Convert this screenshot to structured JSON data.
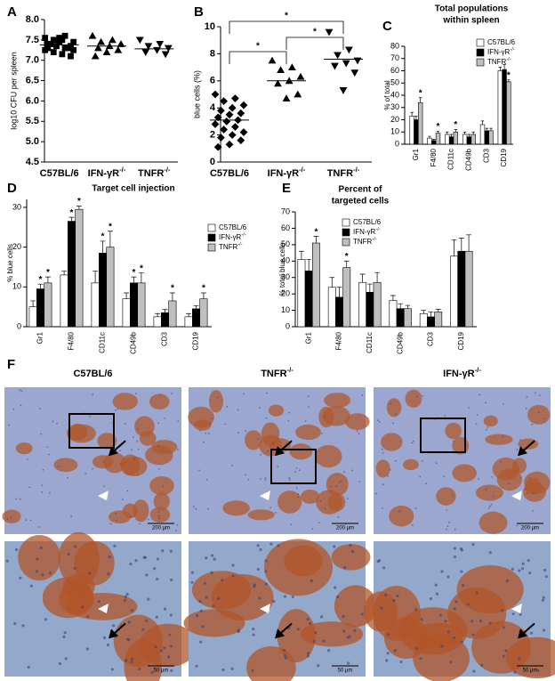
{
  "chart_data": [
    {
      "type": "scatter",
      "panel": "A",
      "ylabel": "log10 CFU per spleen",
      "categories": [
        "C57BL/6",
        "IFN-γR-/-",
        "TNFR-/-"
      ],
      "series": [
        {
          "marker": "square",
          "color": "#000000",
          "values": [
            7.55,
            7.6,
            7.5,
            7.45,
            7.5,
            7.4,
            7.35,
            7.45,
            7.4,
            7.3,
            7.35,
            7.25,
            7.3,
            7.2,
            7.25,
            7.15,
            7.4,
            7.1,
            7.55,
            7.3
          ]
        },
        {
          "marker": "triangle",
          "color": "#000000",
          "values": [
            7.6,
            7.5,
            7.45,
            7.4,
            7.35,
            7.3,
            7.25,
            7.2,
            7.1
          ]
        },
        {
          "marker": "triangle-down",
          "color": "#000000",
          "values": [
            7.5,
            7.4,
            7.35,
            7.3,
            7.25,
            7.2,
            7.15
          ]
        }
      ],
      "means": [
        7.38,
        7.35,
        7.28
      ],
      "ylim": [
        4.5,
        8.0
      ],
      "yticks": [
        4.5,
        {
          "value": 5,
          "label": "5.0"
        },
        5.5,
        {
          "value": 6,
          "label": "6.0"
        },
        6.5,
        {
          "value": 7,
          "label": "7.0"
        },
        7.5,
        {
          "value": 8,
          "label": "8.0"
        }
      ]
    },
    {
      "type": "scatter",
      "panel": "B",
      "ylabel": "blue cells (%)",
      "categories": [
        "C57BL/6",
        "IFN-γR-/-",
        "TNFR-/-"
      ],
      "series": [
        {
          "marker": "diamond",
          "color": "#000000",
          "values": [
            5.0,
            4.7,
            4.5,
            4.2,
            4.0,
            3.8,
            3.6,
            3.5,
            3.3,
            3.1,
            3.0,
            2.8,
            2.6,
            2.4,
            2.2,
            2.0,
            1.8,
            1.6,
            1.3,
            1.1
          ]
        },
        {
          "marker": "triangle",
          "color": "#000000",
          "values": [
            7.5,
            7.0,
            6.8,
            6.3,
            6.0,
            5.8,
            5.0,
            4.7
          ]
        },
        {
          "marker": "triangle-down",
          "color": "#000000",
          "values": [
            9.6,
            8.3,
            7.9,
            7.5,
            7.3,
            7.1,
            6.6,
            5.3
          ]
        }
      ],
      "means": [
        3.1,
        6.0,
        7.6
      ],
      "comparisons": [
        {
          "from": 0,
          "to": 2,
          "label": "*"
        },
        {
          "from": 0,
          "to": 1,
          "label": "*"
        },
        {
          "from": 1,
          "to": 2,
          "label": "*"
        }
      ],
      "ylim": [
        0,
        10
      ],
      "yticks": [
        0,
        2,
        4,
        6,
        8,
        10
      ]
    },
    {
      "type": "bar",
      "panel": "C",
      "title": [
        "Total populations",
        "within spleen"
      ],
      "ylabel": "% of total",
      "categories": [
        "Gr1",
        "F4/80",
        "CD11c",
        "CD49b",
        "CD3",
        "CD19"
      ],
      "series": [
        {
          "name": "C57BL/6",
          "color": "#ffffff",
          "values": [
            23,
            5,
            8,
            8,
            16,
            60
          ],
          "errors": [
            3,
            1.5,
            2,
            2,
            3,
            3
          ],
          "significance": [
            null,
            null,
            null,
            null,
            null,
            null
          ]
        },
        {
          "name": "IFN-γR-/-",
          "color": "#000000",
          "values": [
            20,
            3,
            6,
            6,
            11,
            61
          ],
          "errors": [
            3,
            1,
            2,
            2,
            2,
            4
          ],
          "significance": [
            null,
            null,
            null,
            null,
            null,
            null
          ]
        },
        {
          "name": "TNFR-/-",
          "color": "#bfbfbf",
          "values": [
            34,
            9,
            10,
            8,
            11,
            51
          ],
          "errors": [
            4,
            1.5,
            2,
            2,
            2,
            1.5
          ],
          "significance": [
            "*",
            "*",
            "*",
            null,
            null,
            "*"
          ]
        }
      ],
      "ylim": [
        0,
        80
      ],
      "yticks": [
        0,
        10,
        20,
        30,
        40,
        50,
        60,
        70,
        80
      ]
    },
    {
      "type": "bar",
      "panel": "D",
      "title": "Target cell injection",
      "ylabel": "% blue cells",
      "categories": [
        "Gr1",
        "F4/80",
        "CD11c",
        "CD49b",
        "CD3",
        "CD19"
      ],
      "series": [
        {
          "name": "C57BL/6",
          "color": "#ffffff",
          "values": [
            5,
            13,
            11,
            7,
            2.5,
            2.5
          ],
          "errors": [
            1.5,
            1,
            3,
            1.5,
            0.8,
            0.8
          ],
          "significance": [
            null,
            null,
            null,
            null,
            null,
            null
          ]
        },
        {
          "name": "IFN-γR-/-",
          "color": "#000000",
          "values": [
            9.5,
            26.5,
            18.5,
            11,
            3.5,
            4.5
          ],
          "errors": [
            1.2,
            1,
            3,
            1.5,
            0.8,
            0.8
          ],
          "significance": [
            "*",
            "*",
            "*",
            "*",
            null,
            null
          ]
        },
        {
          "name": "TNFR-/-",
          "color": "#bfbfbf",
          "values": [
            11,
            29.5,
            20,
            11,
            6.5,
            7
          ],
          "errors": [
            1.5,
            0.8,
            4,
            2.5,
            2,
            1.5
          ],
          "significance": [
            "*",
            "*",
            "*",
            "*",
            "*",
            "*"
          ]
        }
      ],
      "ylim": [
        0,
        32
      ],
      "yticks": [
        0,
        10,
        20,
        30
      ]
    },
    {
      "type": "bar",
      "panel": "E",
      "title": [
        "Percent of",
        "targeted cells"
      ],
      "ylabel": "% total blue cells",
      "categories": [
        "Gr1",
        "F4/80",
        "CD11c",
        "CD49b",
        "CD3",
        "CD19"
      ],
      "series": [
        {
          "name": "C57BL/6",
          "color": "#ffffff",
          "values": [
            41,
            24,
            27,
            16,
            8,
            43
          ],
          "errors": [
            5,
            6,
            5,
            3,
            2,
            10
          ],
          "significance": [
            null,
            null,
            null,
            null,
            null,
            null
          ]
        },
        {
          "name": "IFN-γR-/-",
          "color": "#000000",
          "values": [
            34,
            18,
            21,
            11,
            6,
            46
          ],
          "errors": [
            7,
            6,
            5,
            3,
            3,
            8
          ],
          "significance": [
            null,
            null,
            null,
            null,
            null,
            null
          ]
        },
        {
          "name": "TNFR-/-",
          "color": "#bfbfbf",
          "values": [
            51,
            36,
            27,
            11,
            9,
            46
          ],
          "errors": [
            4,
            4,
            6,
            2,
            1.5,
            10
          ],
          "significance": [
            "*",
            "*",
            null,
            null,
            null,
            null
          ]
        }
      ],
      "ylim": [
        0,
        70
      ],
      "yticks": [
        0,
        10,
        20,
        30,
        40,
        50,
        60,
        70
      ]
    }
  ],
  "micrographs": {
    "panel": "F",
    "columns": [
      "C57BL/6",
      "TNFR-/-",
      "IFN-γR-/-"
    ],
    "scale_labels": [
      "200 µm",
      "50 µm"
    ]
  }
}
